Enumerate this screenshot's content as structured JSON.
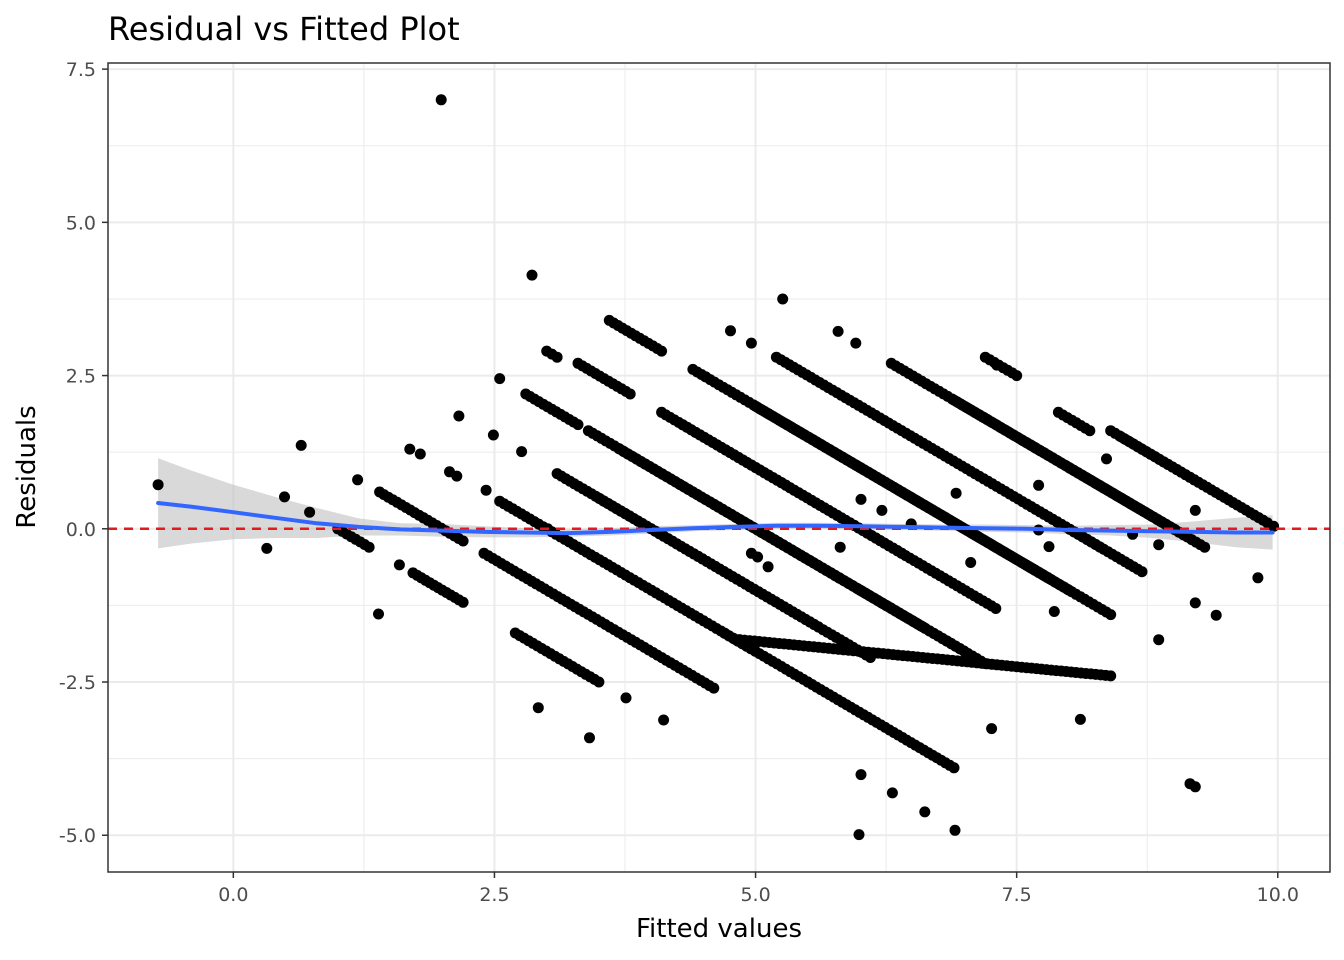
{
  "chart_data": {
    "type": "scatter",
    "title": "Residual vs Fitted Plot",
    "xlabel": "Fitted values",
    "ylabel": "Residuals",
    "xlim": [
      -1.2,
      10.5
    ],
    "ylim": [
      -5.6,
      7.6
    ],
    "xticks": [
      0.0,
      2.5,
      5.0,
      7.5,
      10.0
    ],
    "xtick_labels": [
      "0.0",
      "2.5",
      "5.0",
      "7.5",
      "10.0"
    ],
    "yticks": [
      -5.0,
      -2.5,
      0.0,
      2.5,
      5.0,
      7.5
    ],
    "ytick_labels": [
      "-5.0",
      "-2.5",
      "0.0",
      "2.5",
      "5.0",
      "7.5"
    ],
    "grid": true,
    "reference_line": {
      "y": 0,
      "style": "dashed",
      "color": "#e31a1c"
    },
    "colors": {
      "points": "#000000",
      "smooth": "#3366ff",
      "ribbon": "#bfbfbf",
      "grid": "#ebebeb",
      "border": "#333333"
    },
    "points": [
      [
        -0.72,
        0.72
      ],
      [
        0.32,
        -0.32
      ],
      [
        0.49,
        0.52
      ],
      [
        0.65,
        1.36
      ],
      [
        0.73,
        0.27
      ],
      [
        1.19,
        0.8
      ],
      [
        1.39,
        -1.39
      ],
      [
        1.59,
        -0.59
      ],
      [
        1.69,
        1.3
      ],
      [
        1.79,
        1.22
      ],
      [
        1.99,
        7.0
      ],
      [
        2.07,
        0.93
      ],
      [
        2.14,
        0.86
      ],
      [
        2.16,
        1.84
      ],
      [
        2.42,
        0.63
      ],
      [
        2.49,
        1.53
      ],
      [
        2.55,
        2.45
      ],
      [
        2.76,
        1.26
      ],
      [
        2.86,
        4.14
      ],
      [
        2.92,
        -2.92
      ],
      [
        3.01,
        0.0
      ],
      [
        3.41,
        -3.41
      ],
      [
        3.76,
        -2.76
      ],
      [
        4.12,
        -3.12
      ],
      [
        4.52,
        2.48
      ],
      [
        4.76,
        3.23
      ],
      [
        4.96,
        3.03
      ],
      [
        4.96,
        -0.4
      ],
      [
        5.02,
        -0.46
      ],
      [
        5.12,
        -0.62
      ],
      [
        5.26,
        3.75
      ],
      [
        5.79,
        3.22
      ],
      [
        5.81,
        -0.3
      ],
      [
        5.96,
        3.03
      ],
      [
        6.01,
        0.48
      ],
      [
        6.01,
        -4.01
      ],
      [
        5.99,
        -4.99
      ],
      [
        6.21,
        0.3
      ],
      [
        6.31,
        -4.31
      ],
      [
        6.62,
        -4.62
      ],
      [
        6.49,
        0.08
      ],
      [
        6.91,
        -4.92
      ],
      [
        6.92,
        0.58
      ],
      [
        7.06,
        -0.55
      ],
      [
        7.26,
        -3.26
      ],
      [
        7.31,
        2.67
      ],
      [
        7.71,
        -0.02
      ],
      [
        7.81,
        -0.29
      ],
      [
        7.86,
        -1.35
      ],
      [
        7.71,
        0.71
      ],
      [
        8.11,
        -3.11
      ],
      [
        8.36,
        1.14
      ],
      [
        8.61,
        -0.09
      ],
      [
        8.86,
        -1.81
      ],
      [
        8.86,
        -0.26
      ],
      [
        9.16,
        -4.16
      ],
      [
        9.21,
        -4.21
      ],
      [
        9.21,
        0.3
      ],
      [
        9.21,
        -1.21
      ],
      [
        9.41,
        -1.41
      ],
      [
        9.81,
        -0.8
      ],
      [
        9.96,
        0.04
      ]
    ],
    "line_segments": [
      [
        [
          1.0,
          0.0
        ],
        [
          1.3,
          -0.3
        ]
      ],
      [
        [
          1.4,
          0.6
        ],
        [
          1.82,
          0.18
        ]
      ],
      [
        [
          1.72,
          -0.72
        ],
        [
          2.2,
          -1.2
        ]
      ],
      [
        [
          1.82,
          0.18
        ],
        [
          2.2,
          -0.2
        ]
      ],
      [
        [
          2.4,
          -0.4
        ],
        [
          4.6,
          -2.6
        ]
      ],
      [
        [
          2.55,
          0.45
        ],
        [
          5.0,
          -2.0
        ]
      ],
      [
        [
          2.7,
          -1.7
        ],
        [
          3.5,
          -2.5
        ]
      ],
      [
        [
          2.8,
          2.2
        ],
        [
          3.3,
          1.7
        ]
      ],
      [
        [
          3.0,
          2.9
        ],
        [
          3.1,
          2.8
        ]
      ],
      [
        [
          3.1,
          0.9
        ],
        [
          5.6,
          -1.6
        ]
      ],
      [
        [
          3.3,
          2.7
        ],
        [
          3.8,
          2.2
        ]
      ],
      [
        [
          3.4,
          1.6
        ],
        [
          5.8,
          -0.8
        ]
      ],
      [
        [
          3.5,
          0.5
        ],
        [
          6.1,
          -2.1
        ]
      ],
      [
        [
          3.6,
          3.4
        ],
        [
          4.1,
          2.9
        ]
      ],
      [
        [
          3.7,
          1.3
        ],
        [
          6.6,
          -1.6
        ]
      ],
      [
        [
          4.1,
          1.9
        ],
        [
          6.4,
          -0.4
        ]
      ],
      [
        [
          4.3,
          1.7
        ],
        [
          7.3,
          -1.3
        ]
      ],
      [
        [
          4.4,
          2.6
        ],
        [
          8.0,
          -1.0
        ]
      ],
      [
        [
          4.6,
          0.4
        ],
        [
          7.0,
          -2.0
        ]
      ],
      [
        [
          4.7,
          -1.7
        ],
        [
          5.5,
          -2.5
        ]
      ],
      [
        [
          4.8,
          -1.8
        ],
        [
          8.4,
          -2.4
        ]
      ],
      [
        [
          5.0,
          2.0
        ],
        [
          8.4,
          -1.4
        ]
      ],
      [
        [
          5.5,
          -2.5
        ],
        [
          6.9,
          -3.9
        ]
      ],
      [
        [
          5.2,
          2.8
        ],
        [
          8.3,
          -0.3
        ]
      ],
      [
        [
          5.3,
          1.7
        ],
        [
          7.8,
          -0.8
        ]
      ],
      [
        [
          6.0,
          -1.0
        ],
        [
          7.2,
          -2.2
        ]
      ],
      [
        [
          6.3,
          2.7
        ],
        [
          9.0,
          0.0
        ]
      ],
      [
        [
          6.9,
          2.1
        ],
        [
          9.3,
          -0.3
        ]
      ],
      [
        [
          7.2,
          2.8
        ],
        [
          7.5,
          2.5
        ]
      ],
      [
        [
          7.6,
          0.4
        ],
        [
          8.7,
          -0.7
        ]
      ],
      [
        [
          7.9,
          1.9
        ],
        [
          8.2,
          1.6
        ]
      ],
      [
        [
          8.0,
          1.0
        ],
        [
          9.1,
          -0.1
        ]
      ],
      [
        [
          8.4,
          1.6
        ],
        [
          9.2,
          0.8
        ]
      ],
      [
        [
          8.5,
          1.5
        ],
        [
          9.9,
          0.1
        ]
      ]
    ],
    "smooth_line": [
      [
        -0.72,
        0.42
      ],
      [
        -0.4,
        0.36
      ],
      [
        0.0,
        0.27
      ],
      [
        0.4,
        0.18
      ],
      [
        0.8,
        0.09
      ],
      [
        1.2,
        0.03
      ],
      [
        1.6,
        -0.01
      ],
      [
        2.0,
        -0.03
      ],
      [
        2.4,
        -0.05
      ],
      [
        2.8,
        -0.06
      ],
      [
        3.2,
        -0.07
      ],
      [
        3.6,
        -0.05
      ],
      [
        4.0,
        -0.02
      ],
      [
        4.4,
        0.01
      ],
      [
        4.8,
        0.03
      ],
      [
        5.2,
        0.05
      ],
      [
        5.6,
        0.05
      ],
      [
        6.0,
        0.04
      ],
      [
        6.4,
        0.03
      ],
      [
        6.8,
        0.02
      ],
      [
        7.2,
        0.01
      ],
      [
        7.6,
        0.0
      ],
      [
        8.0,
        -0.02
      ],
      [
        8.4,
        -0.03
      ],
      [
        8.8,
        -0.04
      ],
      [
        9.2,
        -0.05
      ],
      [
        9.6,
        -0.06
      ],
      [
        9.95,
        -0.06
      ]
    ],
    "ribbon_upper": [
      [
        -0.72,
        1.15
      ],
      [
        -0.4,
        0.95
      ],
      [
        0.0,
        0.72
      ],
      [
        0.4,
        0.52
      ],
      [
        0.8,
        0.34
      ],
      [
        1.2,
        0.17
      ],
      [
        1.6,
        0.09
      ],
      [
        2.0,
        0.08
      ],
      [
        2.4,
        0.04
      ],
      [
        2.8,
        0.01
      ],
      [
        3.2,
        -0.01
      ],
      [
        3.6,
        0.01
      ],
      [
        4.0,
        0.04
      ],
      [
        4.4,
        0.06
      ],
      [
        4.8,
        0.08
      ],
      [
        5.2,
        0.1
      ],
      [
        5.6,
        0.1
      ],
      [
        6.0,
        0.09
      ],
      [
        6.4,
        0.08
      ],
      [
        6.8,
        0.07
      ],
      [
        7.2,
        0.07
      ],
      [
        7.6,
        0.06
      ],
      [
        8.0,
        0.05
      ],
      [
        8.4,
        0.06
      ],
      [
        8.8,
        0.07
      ],
      [
        9.2,
        0.12
      ],
      [
        9.6,
        0.18
      ],
      [
        9.95,
        0.22
      ]
    ],
    "ribbon_lower": [
      [
        -0.72,
        -0.32
      ],
      [
        -0.4,
        -0.24
      ],
      [
        0.0,
        -0.17
      ],
      [
        0.4,
        -0.15
      ],
      [
        0.8,
        -0.15
      ],
      [
        1.2,
        -0.11
      ],
      [
        1.6,
        -0.11
      ],
      [
        2.0,
        -0.13
      ],
      [
        2.4,
        -0.14
      ],
      [
        2.8,
        -0.14
      ],
      [
        3.2,
        -0.13
      ],
      [
        3.6,
        -0.11
      ],
      [
        4.0,
        -0.08
      ],
      [
        4.4,
        -0.04
      ],
      [
        4.8,
        -0.02
      ],
      [
        5.2,
        0.0
      ],
      [
        5.6,
        0.0
      ],
      [
        6.0,
        -0.01
      ],
      [
        6.4,
        -0.02
      ],
      [
        6.8,
        -0.03
      ],
      [
        7.2,
        -0.05
      ],
      [
        7.6,
        -0.06
      ],
      [
        8.0,
        -0.09
      ],
      [
        8.4,
        -0.11
      ],
      [
        8.8,
        -0.15
      ],
      [
        9.2,
        -0.22
      ],
      [
        9.6,
        -0.3
      ],
      [
        9.95,
        -0.34
      ]
    ]
  }
}
